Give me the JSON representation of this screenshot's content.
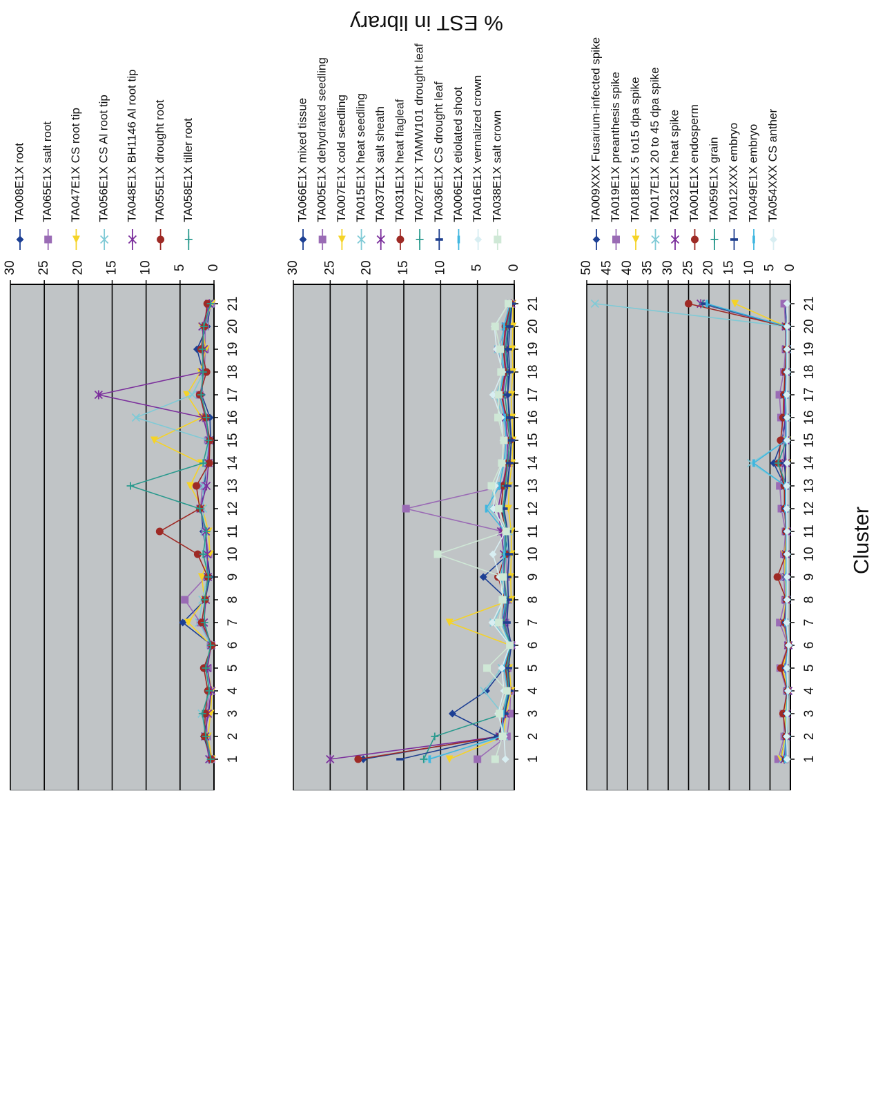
{
  "figure": {
    "ylabel": "% EST in library",
    "xlabel": "Cluster"
  },
  "colors": {
    "plot_bg": "#c0c4c6",
    "grid": "#000000",
    "axis": "#000000"
  },
  "chart_data": [
    {
      "type": "line",
      "title": "",
      "xlabel": "Cluster",
      "ylabel": "% EST in library",
      "x": [
        1,
        2,
        3,
        4,
        5,
        6,
        7,
        8,
        9,
        10,
        11,
        12,
        13,
        14,
        15,
        16,
        17,
        18,
        19,
        20,
        21
      ],
      "ylim": [
        0,
        30
      ],
      "yticks": [
        0,
        5,
        10,
        15,
        20,
        25,
        30
      ],
      "grid": true,
      "legend": "right",
      "series": [
        {
          "name": "TA008E1X root",
          "color": "#1c3f94",
          "marker": "diamond",
          "values": [
            0.5,
            1.5,
            0.8,
            0.4,
            1.3,
            0.3,
            4.6,
            1.3,
            0.6,
            1.0,
            1.6,
            1.9,
            1.4,
            1.1,
            0.5,
            0.6,
            1.8,
            1.6,
            2.5,
            1.0,
            0.5
          ]
        },
        {
          "name": "TA065E1X salt root",
          "color": "#9a6bb5",
          "marker": "square",
          "values": [
            0.4,
            1.0,
            1.2,
            0.6,
            0.9,
            0.5,
            2.0,
            4.3,
            1.2,
            0.8,
            1.3,
            2.0,
            1.7,
            0.9,
            0.9,
            1.3,
            2.1,
            1.4,
            1.3,
            1.3,
            0.4
          ]
        },
        {
          "name": "TA047E1X CS root tip",
          "color": "#f5d327",
          "marker": "triangle",
          "values": [
            0.3,
            0.9,
            0.5,
            0.3,
            1.0,
            0.4,
            3.8,
            1.4,
            1.8,
            0.6,
            0.8,
            1.7,
            3.5,
            1.9,
            8.8,
            1.8,
            4.0,
            2.0,
            1.2,
            1.8,
            0.3
          ]
        },
        {
          "name": "TA056E1X CS Al root tip",
          "color": "#7fcad6",
          "marker": "x",
          "values": [
            0.6,
            1.2,
            1.8,
            0.5,
            1.1,
            0.5,
            2.2,
            1.7,
            1.0,
            1.2,
            1.4,
            1.6,
            1.6,
            1.2,
            0.8,
            11.5,
            3.2,
            1.5,
            1.6,
            1.5,
            0.6
          ]
        },
        {
          "name": "TA048E1X BH1146 Al root tip",
          "color": "#7b2f9c",
          "marker": "star",
          "values": [
            0.7,
            1.3,
            0.9,
            0.4,
            1.0,
            0.4,
            1.5,
            1.2,
            0.9,
            1.0,
            1.2,
            2.0,
            1.1,
            0.8,
            0.7,
            1.6,
            17.0,
            1.7,
            1.5,
            1.7,
            0.7
          ]
        },
        {
          "name": "TA055E1X drought root",
          "color": "#9e2a25",
          "marker": "circle",
          "values": [
            0.4,
            1.4,
            1.3,
            0.9,
            1.5,
            0.3,
            1.8,
            1.3,
            0.9,
            2.4,
            8.0,
            2.1,
            2.6,
            0.7,
            0.6,
            1.2,
            2.1,
            1.1,
            1.9,
            1.4,
            1.0
          ]
        },
        {
          "name": "TA058E1X tiller root",
          "color": "#2a9a8e",
          "marker": "plus",
          "values": [
            0.5,
            1.2,
            1.7,
            0.7,
            1.2,
            0.5,
            1.4,
            1.4,
            0.8,
            1.6,
            1.1,
            2.1,
            12.3,
            1.6,
            0.8,
            1.1,
            1.9,
            1.6,
            1.7,
            1.5,
            0.5
          ]
        }
      ]
    },
    {
      "type": "line",
      "title": "",
      "xlabel": "Cluster",
      "ylabel": "% EST in library",
      "x": [
        1,
        2,
        3,
        4,
        5,
        6,
        7,
        8,
        9,
        10,
        11,
        12,
        13,
        14,
        15,
        16,
        17,
        18,
        19,
        20,
        21
      ],
      "ylim": [
        0,
        30
      ],
      "yticks": [
        0,
        5,
        10,
        15,
        20,
        25,
        30
      ],
      "grid": true,
      "legend": "right",
      "series": [
        {
          "name": "TA066E1X mixed tissue",
          "color": "#1c3f94",
          "marker": "diamond",
          "values": [
            20.5,
            2.3,
            8.4,
            3.8,
            1.4,
            0.4,
            1.3,
            0.9,
            4.2,
            0.8,
            1.4,
            1.6,
            1.0,
            0.6,
            0.4,
            0.7,
            0.9,
            0.8,
            1.0,
            0.8,
            0.3
          ]
        },
        {
          "name": "TA005E1X dehydrated seedling",
          "color": "#9a6bb5",
          "marker": "square",
          "values": [
            5.0,
            1.0,
            0.6,
            0.5,
            0.9,
            0.4,
            1.2,
            0.8,
            1.0,
            1.0,
            1.6,
            14.7,
            1.4,
            0.7,
            0.8,
            1.4,
            1.6,
            1.4,
            2.2,
            1.2,
            0.5
          ]
        },
        {
          "name": "TA007E1X cold seedling",
          "color": "#f5d327",
          "marker": "triangle",
          "values": [
            8.8,
            1.5,
            1.1,
            0.4,
            0.7,
            0.5,
            8.8,
            0.4,
            0.5,
            0.4,
            0.4,
            0.8,
            0.7,
            0.3,
            0.2,
            0.3,
            0.4,
            0.2,
            0.3,
            0.2,
            0.2
          ]
        },
        {
          "name": "TA015E1X heat seedling",
          "color": "#7fcad6",
          "marker": "x",
          "values": [
            11.8,
            1.4,
            1.6,
            4.1,
            1.7,
            0.5,
            2.8,
            1.3,
            1.6,
            1.0,
            0.8,
            3.4,
            2.7,
            1.3,
            0.8,
            1.6,
            2.5,
            1.3,
            2.2,
            1.3,
            0.5
          ]
        },
        {
          "name": "TA037E1X salt sheath",
          "color": "#7b2f9c",
          "marker": "star",
          "values": [
            25.0,
            2.0,
            1.2,
            0.9,
            1.1,
            0.4,
            1.5,
            1.2,
            1.4,
            1.4,
            1.8,
            2.2,
            1.6,
            1.0,
            0.9,
            1.2,
            1.6,
            1.1,
            1.4,
            1.1,
            0.4
          ]
        },
        {
          "name": "TA031E1X heat flagleaf",
          "color": "#9e2a25",
          "marker": "circle",
          "values": [
            21.2,
            1.9,
            1.6,
            0.8,
            1.2,
            0.5,
            1.7,
            1.3,
            2.2,
            1.2,
            1.2,
            1.8,
            1.5,
            0.9,
            0.6,
            1.0,
            1.8,
            1.2,
            1.5,
            1.2,
            0.5
          ]
        },
        {
          "name": "TA027E1X TAMW101 drought leaf",
          "color": "#2a9a8e",
          "marker": "plus",
          "values": [
            12.3,
            10.8,
            1.4,
            0.7,
            1.0,
            0.5,
            1.4,
            1.0,
            1.4,
            1.2,
            1.1,
            1.5,
            1.2,
            0.9,
            0.6,
            0.9,
            1.3,
            0.9,
            1.2,
            0.9,
            0.4
          ]
        },
        {
          "name": "TA036E1X CS drought leaf",
          "color": "#1f3f8f",
          "marker": "dash",
          "values": [
            15.5,
            2.2,
            1.3,
            0.6,
            0.8,
            0.4,
            1.0,
            0.8,
            0.9,
            0.7,
            0.9,
            1.4,
            0.9,
            0.6,
            0.4,
            0.6,
            0.9,
            0.6,
            0.8,
            0.6,
            0.3
          ]
        },
        {
          "name": "TA006E1X etiolated shoot",
          "color": "#3fb6e0",
          "marker": "bar",
          "values": [
            11.5,
            1.8,
            1.5,
            0.9,
            1.4,
            0.6,
            1.7,
            1.2,
            1.8,
            1.4,
            1.3,
            3.8,
            2.0,
            1.4,
            1.1,
            1.3,
            2.0,
            1.4,
            1.7,
            1.4,
            0.6
          ]
        },
        {
          "name": "TA016E1X vernalized crown",
          "color": "#d8eef2",
          "marker": "diamond",
          "values": [
            1.2,
            1.4,
            2.2,
            1.4,
            1.7,
            0.6,
            3.0,
            1.5,
            2.0,
            2.9,
            1.2,
            2.8,
            2.6,
            1.6,
            1.5,
            1.8,
            2.9,
            1.6,
            2.4,
            2.7,
            0.8
          ]
        },
        {
          "name": "TA038E1X salt crown",
          "color": "#cfe8d6",
          "marker": "square",
          "values": [
            2.6,
            1.6,
            2.0,
            1.0,
            3.7,
            0.6,
            2.1,
            1.6,
            1.5,
            10.4,
            1.1,
            2.1,
            3.1,
            1.7,
            1.4,
            2.2,
            2.1,
            1.8,
            1.9,
            2.6,
            0.8
          ]
        }
      ]
    },
    {
      "type": "line",
      "title": "",
      "xlabel": "Cluster",
      "ylabel": "% EST in library",
      "x": [
        1,
        2,
        3,
        4,
        5,
        6,
        7,
        8,
        9,
        10,
        11,
        12,
        13,
        14,
        15,
        16,
        17,
        18,
        19,
        20,
        21
      ],
      "ylim": [
        0,
        50
      ],
      "yticks": [
        0,
        5,
        10,
        15,
        20,
        25,
        30,
        35,
        40,
        45,
        50
      ],
      "grid": true,
      "legend": "right",
      "series": [
        {
          "name": "TA009XXX Fusarium-infected spike",
          "color": "#1c3f94",
          "marker": "diamond",
          "values": [
            2.4,
            1.2,
            1.0,
            0.6,
            1.2,
            0.5,
            1.8,
            0.9,
            1.1,
            1.0,
            1.0,
            1.3,
            1.4,
            4.1,
            2.0,
            1.2,
            1.2,
            0.9,
            0.9,
            0.9,
            1.3
          ]
        },
        {
          "name": "TA019E1X preanthesis spike",
          "color": "#9a6bb5",
          "marker": "square",
          "values": [
            3.0,
            1.5,
            1.7,
            0.9,
            2.5,
            0.6,
            2.6,
            1.3,
            1.6,
            1.6,
            1.2,
            2.2,
            2.6,
            1.8,
            1.5,
            2.3,
            2.7,
            1.6,
            1.2,
            1.2,
            1.5
          ]
        },
        {
          "name": "TA018E1X 5 to15 dpa spike",
          "color": "#f5d327",
          "marker": "triangle",
          "values": [
            2.3,
            1.2,
            1.3,
            0.7,
            1.9,
            0.5,
            1.8,
            1.1,
            1.3,
            1.4,
            1.0,
            1.4,
            1.3,
            0.8,
            0.8,
            1.1,
            1.3,
            1.0,
            0.9,
            1.0,
            13.6
          ]
        },
        {
          "name": "TA017E1X 20 to 45 dpa spike",
          "color": "#7fcad6",
          "marker": "x",
          "values": [
            1.8,
            1.1,
            1.0,
            0.6,
            1.3,
            0.4,
            1.4,
            0.9,
            1.2,
            1.0,
            0.9,
            1.2,
            1.1,
            9.6,
            1.0,
            1.0,
            1.2,
            0.9,
            0.8,
            1.0,
            48.0
          ]
        },
        {
          "name": "TA032E1X heat spike",
          "color": "#7b2f9c",
          "marker": "star",
          "values": [
            1.5,
            1.0,
            0.9,
            0.5,
            1.4,
            0.5,
            1.6,
            1.0,
            1.0,
            1.1,
            0.9,
            1.5,
            1.4,
            1.1,
            1.2,
            1.4,
            1.5,
            1.1,
            1.0,
            1.1,
            22.0
          ]
        },
        {
          "name": "TA001E1X endosperm",
          "color": "#9e2a25",
          "marker": "circle",
          "values": [
            1.2,
            1.1,
            1.8,
            0.7,
            2.3,
            0.5,
            1.4,
            1.0,
            3.2,
            1.1,
            1.1,
            1.4,
            1.5,
            2.9,
            2.4,
            1.8,
            1.6,
            1.3,
            1.0,
            1.1,
            25.0
          ]
        },
        {
          "name": "TA059E1X grain",
          "color": "#2a9a8e",
          "marker": "plus",
          "values": [
            1.0,
            0.8,
            0.8,
            0.5,
            1.0,
            0.4,
            1.0,
            0.8,
            0.9,
            0.8,
            0.8,
            1.0,
            1.0,
            3.0,
            1.0,
            0.9,
            1.0,
            0.8,
            0.8,
            0.8,
            21.5
          ]
        },
        {
          "name": "TA012XXX embryo",
          "color": "#1f3f8f",
          "marker": "dash",
          "values": [
            1.1,
            0.9,
            0.9,
            0.6,
            1.1,
            0.4,
            1.1,
            0.9,
            1.0,
            0.9,
            0.9,
            1.1,
            1.0,
            1.5,
            1.0,
            1.0,
            1.1,
            0.9,
            0.9,
            0.9,
            21.0
          ]
        },
        {
          "name": "TA049E1X embryo",
          "color": "#3fb6e0",
          "marker": "bar",
          "values": [
            1.3,
            1.0,
            1.0,
            0.7,
            1.2,
            0.5,
            1.2,
            1.0,
            1.1,
            1.0,
            1.0,
            1.2,
            1.2,
            9.0,
            1.1,
            1.1,
            1.2,
            1.0,
            0.9,
            1.0,
            20.5
          ]
        },
        {
          "name": "TA054XXX CS anther",
          "color": "#d8eef2",
          "marker": "diamond",
          "values": [
            0.8,
            0.9,
            0.8,
            0.6,
            0.9,
            0.4,
            0.9,
            0.8,
            0.8,
            0.8,
            0.8,
            0.9,
            0.9,
            0.8,
            0.8,
            0.8,
            0.9,
            0.8,
            0.8,
            0.8,
            0.8
          ]
        }
      ]
    }
  ]
}
